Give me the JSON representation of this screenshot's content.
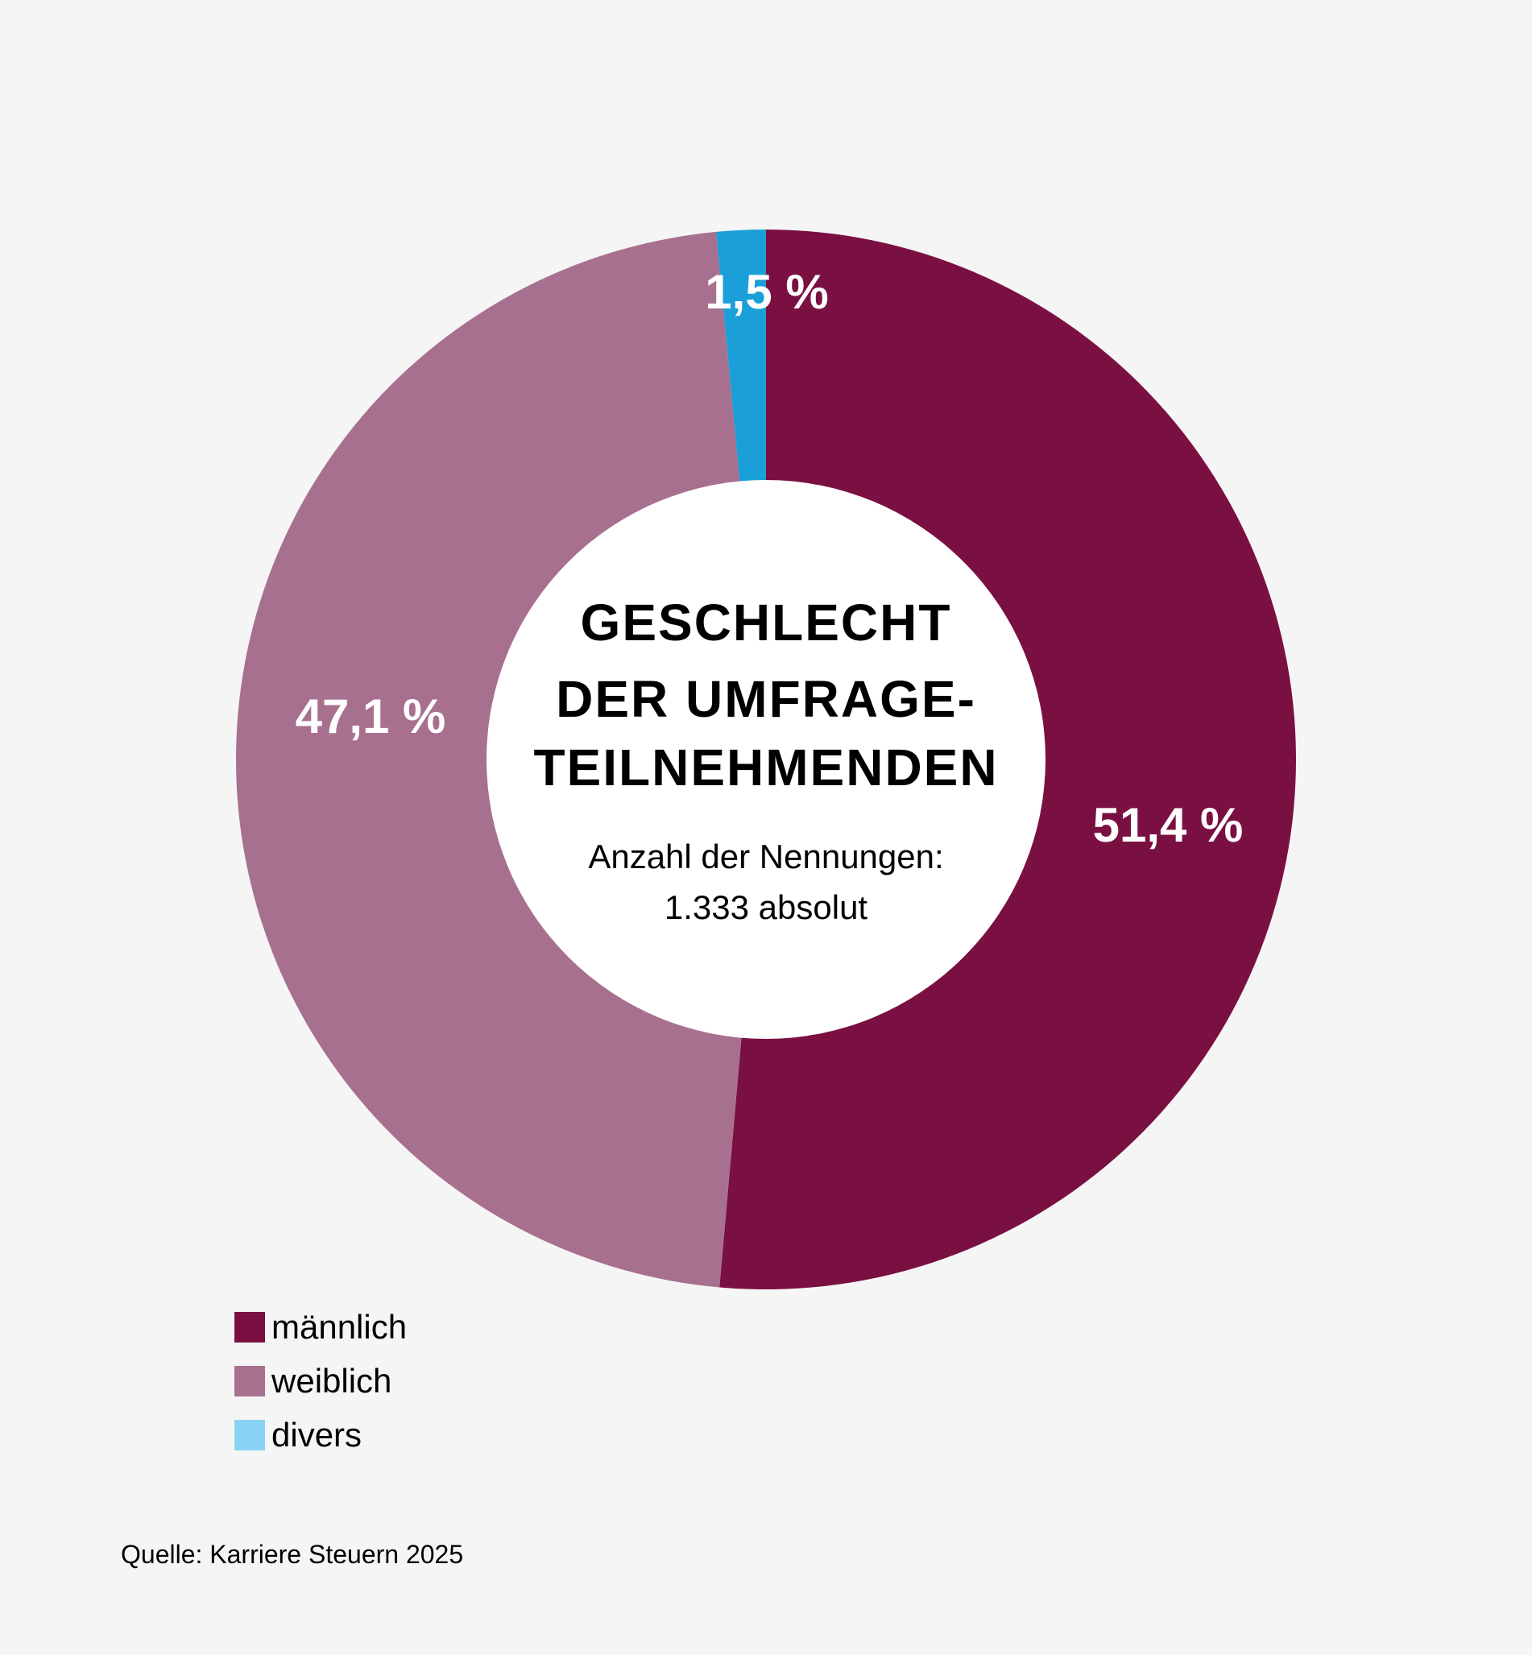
{
  "chart_data": {
    "type": "pie",
    "variant": "donut",
    "title": "GESCHLECHT DER UMFRAGE-TEILNEHMENDEN",
    "title_lines": [
      "GESCHLECHT",
      "DER UMFRAGE-",
      "TEILNEHMENDEN"
    ],
    "subtitle_lines": [
      "Anzahl der Nennungen:",
      "1.333 absolut"
    ],
    "slices": [
      {
        "name": "männlich",
        "value": 51.4,
        "label": "51,4 %",
        "color": "#7a1042"
      },
      {
        "name": "weiblich",
        "value": 47.1,
        "label": "47,1 %",
        "color": "#a8708f"
      },
      {
        "name": "divers",
        "value": 1.5,
        "label": "1,5 %",
        "color": "#1a9fd8"
      }
    ],
    "legend": {
      "placement": "bottom-left",
      "items": [
        {
          "label": "männlich",
          "color": "#7a1042"
        },
        {
          "label": "weiblich",
          "color": "#a8708f"
        },
        {
          "label": "divers",
          "color": "#8ad3f4"
        }
      ]
    }
  },
  "source": "Quelle: Karriere Steuern 2025"
}
